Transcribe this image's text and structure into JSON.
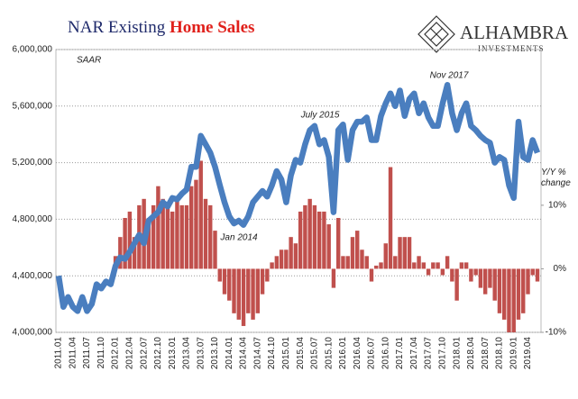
{
  "chart_data": {
    "type": "line",
    "title": [
      "NAR Existing",
      "Home Sales"
    ],
    "logo": [
      "ALHAMBRA",
      "INVESTMENTS"
    ],
    "annotations": [
      "SAAR",
      "July 2015",
      "Nov 2017",
      "Jan 2014"
    ],
    "y2label": "Y/Y % change",
    "categories": [
      "2011.01",
      null,
      null,
      "2011.04",
      null,
      null,
      "2011.07",
      null,
      null,
      "2011.10",
      null,
      null,
      "2012.01",
      null,
      null,
      "2012.04",
      null,
      null,
      "2012.07",
      null,
      null,
      "2012.10",
      null,
      null,
      "2013.01",
      null,
      null,
      "2013.04",
      null,
      null,
      "2013.07",
      null,
      null,
      "2013.10",
      null,
      null,
      "2014.01",
      null,
      null,
      "2014.04",
      null,
      null,
      "2014.07",
      null,
      null,
      "2014.10",
      null,
      null,
      "2015.01",
      null,
      null,
      "2015.04",
      null,
      null,
      "2015.07",
      null,
      null,
      "2015.10",
      null,
      null,
      "2016.01",
      null,
      null,
      "2016.04",
      null,
      null,
      "2016.07",
      null,
      null,
      "2016.10",
      null,
      null,
      "2017.01",
      null,
      null,
      "2017.04",
      null,
      null,
      "2017.07",
      null,
      null,
      "2017.10",
      null,
      null,
      "2018.01",
      null,
      null,
      "2018.04",
      null,
      null,
      "2018.07",
      null,
      null,
      "2018.10",
      null,
      null,
      "2019.01",
      null,
      null,
      "2019.04",
      null,
      null
    ],
    "series": [
      {
        "type": "line",
        "color": "#4a7ebf",
        "values": [
          4400000,
          4180000,
          4250000,
          4180000,
          4150000,
          4250000,
          4150000,
          4200000,
          4340000,
          4310000,
          4360000,
          4340000,
          4470000,
          4530000,
          4520000,
          4570000,
          4630000,
          4690000,
          4630000,
          4790000,
          4820000,
          4850000,
          4920000,
          4890000,
          4950000,
          4940000,
          4980000,
          5010000,
          5170000,
          5170000,
          5390000,
          5330000,
          5270000,
          5170000,
          5040000,
          4920000,
          4820000,
          4770000,
          4790000,
          4760000,
          4820000,
          4920000,
          4960000,
          5000000,
          4960000,
          5040000,
          5140000,
          5080000,
          4920000,
          5110000,
          5220000,
          5200000,
          5330000,
          5430000,
          5460000,
          5330000,
          5360000,
          5240000,
          4850000,
          5430000,
          5470000,
          5220000,
          5430000,
          5490000,
          5490000,
          5520000,
          5360000,
          5360000,
          5530000,
          5620000,
          5690000,
          5600000,
          5710000,
          5530000,
          5650000,
          5690000,
          5550000,
          5620000,
          5520000,
          5460000,
          5460000,
          5620000,
          5750000,
          5550000,
          5430000,
          5550000,
          5620000,
          5460000,
          5430000,
          5390000,
          5360000,
          5340000,
          5200000,
          5240000,
          5220000,
          5040000,
          4950000,
          5490000,
          5240000,
          5220000,
          5360000,
          5270000
        ]
      },
      {
        "type": "bar",
        "axis": "y2",
        "color": "#c0504d",
        "values": [
          null,
          null,
          null,
          null,
          null,
          null,
          null,
          null,
          null,
          null,
          null,
          null,
          2,
          5,
          8,
          9,
          5,
          10,
          11,
          8,
          10,
          13,
          11,
          10,
          9,
          11,
          10,
          10,
          13,
          14,
          17,
          11,
          10,
          6,
          -2,
          -4,
          -5,
          -7,
          -8,
          -9,
          -7,
          -8,
          -7,
          -4,
          -2,
          1,
          2,
          3,
          3,
          5,
          4,
          9,
          10,
          11,
          10,
          9,
          9,
          7,
          -3,
          8,
          2,
          2,
          5,
          6,
          3,
          2,
          -2,
          0.5,
          1,
          4,
          16,
          2,
          5,
          5,
          5,
          1,
          2,
          1,
          -1,
          1,
          1,
          -1,
          2,
          -2,
          -5,
          1,
          1,
          -2,
          -1,
          -3,
          -4,
          -3,
          -5,
          -7,
          -8,
          -10,
          -10,
          -8,
          -7,
          -4,
          -1,
          -2
        ]
      }
    ],
    "ylim": [
      4000000,
      6000000
    ],
    "yticks": [
      {
        "value": 4000000,
        "label": "4,000,000"
      },
      {
        "value": 4400000,
        "label": "4,400,000"
      },
      {
        "value": 4800000,
        "label": "4,800,000"
      },
      {
        "value": 5200000,
        "label": "5,200,000"
      },
      {
        "value": 5600000,
        "label": "5,600,000"
      },
      {
        "value": 6000000,
        "label": "6,000,000"
      }
    ],
    "y2lim": [
      -10,
      34.5
    ],
    "y2ticks": [
      {
        "value": -10,
        "label": "-10%"
      },
      {
        "value": 0,
        "label": "0%"
      },
      {
        "value": 10,
        "label": "10%"
      }
    ],
    "grid": true
  }
}
